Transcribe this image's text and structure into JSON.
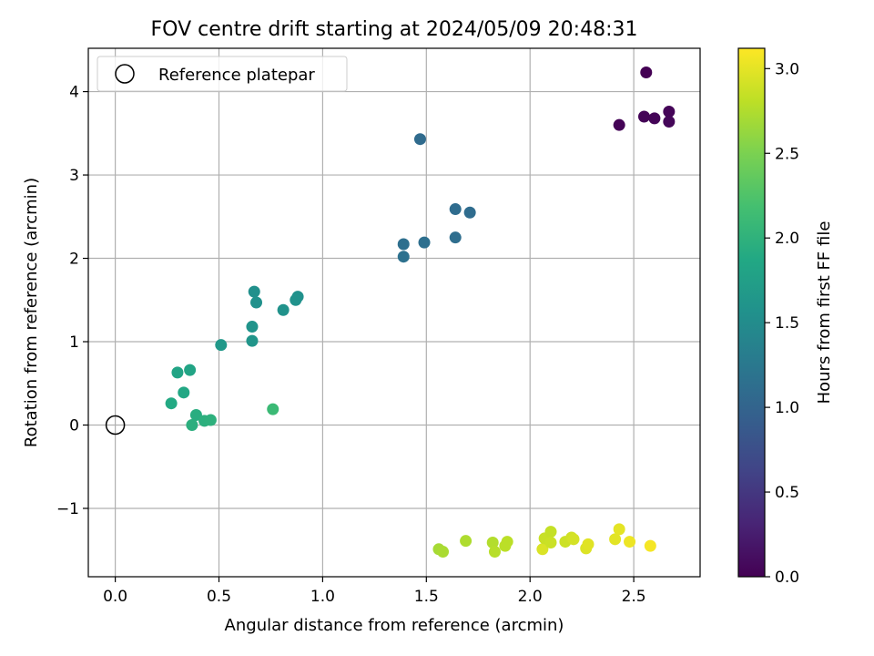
{
  "chart_data": {
    "type": "scatter",
    "title": "FOV centre drift starting at 2024/05/09 20:48:31",
    "xlabel": "Angular distance from reference (arcmin)",
    "ylabel": "Rotation from reference (arcmin)",
    "xlim": [
      -0.13,
      2.82
    ],
    "ylim": [
      -1.82,
      4.52
    ],
    "xticks": [
      0.0,
      0.5,
      1.0,
      1.5,
      2.0,
      2.5
    ],
    "xtick_labels": [
      "0.0",
      "0.5",
      "1.0",
      "1.5",
      "2.0",
      "2.5"
    ],
    "yticks": [
      -1,
      0,
      1,
      2,
      3,
      4
    ],
    "ytick_labels": [
      "−1",
      "0",
      "1",
      "2",
      "3",
      "4"
    ],
    "grid": true,
    "legend": {
      "position": "top-left",
      "label": "Reference platepar"
    },
    "reference_point": {
      "x": 0.0,
      "y": 0.0
    },
    "colorbar": {
      "label": "Hours from first FF file",
      "range": [
        0.0,
        3.12
      ],
      "colormap": "viridis",
      "ticks": [
        0.0,
        0.5,
        1.0,
        1.5,
        2.0,
        2.5,
        3.0
      ],
      "tick_labels": [
        "0.0",
        "0.5",
        "1.0",
        "1.5",
        "2.0",
        "2.5",
        "3.0"
      ]
    },
    "points": [
      {
        "x": 2.56,
        "y": 4.23,
        "t": 0.0
      },
      {
        "x": 2.43,
        "y": 3.6,
        "t": 0.02
      },
      {
        "x": 2.55,
        "y": 3.7,
        "t": 0.03
      },
      {
        "x": 2.6,
        "y": 3.68,
        "t": 0.03
      },
      {
        "x": 2.67,
        "y": 3.76,
        "t": 0.04
      },
      {
        "x": 2.67,
        "y": 3.64,
        "t": 0.05
      },
      {
        "x": 1.47,
        "y": 3.43,
        "t": 1.08
      },
      {
        "x": 1.64,
        "y": 2.59,
        "t": 1.1
      },
      {
        "x": 1.71,
        "y": 2.55,
        "t": 1.1
      },
      {
        "x": 1.64,
        "y": 2.25,
        "t": 1.12
      },
      {
        "x": 1.39,
        "y": 2.17,
        "t": 1.14
      },
      {
        "x": 1.49,
        "y": 2.19,
        "t": 1.14
      },
      {
        "x": 1.39,
        "y": 2.02,
        "t": 1.16
      },
      {
        "x": 0.67,
        "y": 1.6,
        "t": 1.55
      },
      {
        "x": 0.68,
        "y": 1.47,
        "t": 1.56
      },
      {
        "x": 0.88,
        "y": 1.54,
        "t": 1.56
      },
      {
        "x": 0.87,
        "y": 1.5,
        "t": 1.57
      },
      {
        "x": 0.81,
        "y": 1.38,
        "t": 1.58
      },
      {
        "x": 0.66,
        "y": 1.18,
        "t": 1.6
      },
      {
        "x": 0.66,
        "y": 1.01,
        "t": 1.62
      },
      {
        "x": 0.51,
        "y": 0.96,
        "t": 1.66
      },
      {
        "x": 0.3,
        "y": 0.63,
        "t": 1.82
      },
      {
        "x": 0.36,
        "y": 0.66,
        "t": 1.82
      },
      {
        "x": 0.33,
        "y": 0.39,
        "t": 1.86
      },
      {
        "x": 0.27,
        "y": 0.26,
        "t": 1.88
      },
      {
        "x": 0.39,
        "y": 0.12,
        "t": 1.94
      },
      {
        "x": 0.43,
        "y": 0.05,
        "t": 1.97
      },
      {
        "x": 0.46,
        "y": 0.06,
        "t": 1.98
      },
      {
        "x": 0.37,
        "y": 0.0,
        "t": 1.96
      },
      {
        "x": 0.76,
        "y": 0.19,
        "t": 2.1
      },
      {
        "x": 1.56,
        "y": -1.49,
        "t": 2.7
      },
      {
        "x": 1.58,
        "y": -1.52,
        "t": 2.72
      },
      {
        "x": 1.69,
        "y": -1.39,
        "t": 2.74
      },
      {
        "x": 1.82,
        "y": -1.41,
        "t": 2.76
      },
      {
        "x": 1.83,
        "y": -1.52,
        "t": 2.78
      },
      {
        "x": 1.88,
        "y": -1.45,
        "t": 2.8
      },
      {
        "x": 1.89,
        "y": -1.4,
        "t": 2.8
      },
      {
        "x": 2.06,
        "y": -1.49,
        "t": 2.95
      },
      {
        "x": 2.07,
        "y": -1.36,
        "t": 2.86
      },
      {
        "x": 2.1,
        "y": -1.28,
        "t": 2.84
      },
      {
        "x": 2.1,
        "y": -1.41,
        "t": 2.87
      },
      {
        "x": 2.17,
        "y": -1.4,
        "t": 2.88
      },
      {
        "x": 2.2,
        "y": -1.35,
        "t": 2.9
      },
      {
        "x": 2.21,
        "y": -1.37,
        "t": 2.92
      },
      {
        "x": 2.27,
        "y": -1.48,
        "t": 2.96
      },
      {
        "x": 2.28,
        "y": -1.43,
        "t": 2.98
      },
      {
        "x": 2.41,
        "y": -1.37,
        "t": 2.99
      },
      {
        "x": 2.43,
        "y": -1.25,
        "t": 3.0
      },
      {
        "x": 2.48,
        "y": -1.4,
        "t": 3.04
      },
      {
        "x": 2.58,
        "y": -1.45,
        "t": 3.08
      }
    ]
  }
}
